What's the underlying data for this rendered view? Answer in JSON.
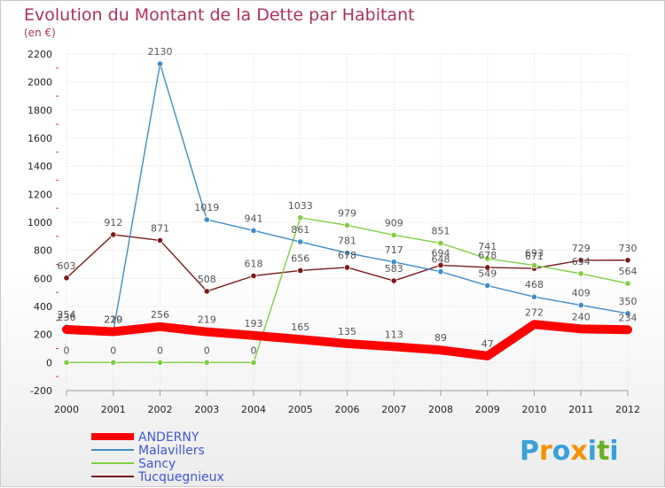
{
  "chart_data": {
    "type": "line",
    "title": "Evolution du Montant de la Dette par Habitant",
    "subtitle": "(en €)",
    "x": [
      "2000",
      "2001",
      "2002",
      "2003",
      "2004",
      "2005",
      "2006",
      "2007",
      "2008",
      "2009",
      "2010",
      "2011",
      "2012"
    ],
    "ylim": [
      -200,
      2200
    ],
    "yticks": [
      -200,
      0,
      200,
      400,
      600,
      800,
      1000,
      1200,
      1400,
      1600,
      1800,
      2000,
      2200
    ],
    "grid": true,
    "legend_position": "bottom-left",
    "series": [
      {
        "name": "ANDERNY",
        "color": "#ff0000",
        "values": [
          236,
          220,
          256,
          219,
          193,
          165,
          135,
          113,
          89,
          47,
          272,
          240,
          234
        ]
      },
      {
        "name": "Malavillers",
        "color": "#3f8dc9",
        "values": [
          254,
          219,
          2130,
          1019,
          941,
          861,
          781,
          717,
          648,
          549,
          468,
          409,
          350
        ]
      },
      {
        "name": "Sancy",
        "color": "#7fcf40",
        "values": [
          0,
          0,
          0,
          0,
          0,
          1033,
          979,
          909,
          851,
          741,
          693,
          634,
          564
        ]
      },
      {
        "name": "Tucquegnieux",
        "color": "#7a1a1a",
        "values": [
          603,
          912,
          871,
          508,
          618,
          656,
          678,
          583,
          694,
          678,
          671,
          729,
          730
        ]
      }
    ]
  },
  "logo": {
    "letters": [
      "P",
      "r",
      "o",
      "x",
      "i",
      "t",
      "i"
    ],
    "colors": [
      "#3aa0d8",
      "#f39200",
      "#3aa0d8",
      "#f39200",
      "#3aa0d8",
      "#6ab023",
      "#3aa0d8"
    ]
  }
}
